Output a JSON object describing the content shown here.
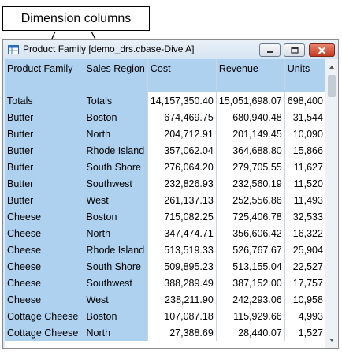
{
  "callout": {
    "text": "Dimension columns"
  },
  "window": {
    "title": "Product Family [demo_drs.cbase-Dive A]",
    "buttons": {
      "minimize": "minimize",
      "maximize": "maximize",
      "close": "close"
    }
  },
  "table": {
    "headers": [
      "Product Family",
      "Sales Region",
      "Cost",
      "Revenue",
      "Units"
    ],
    "rows": [
      [
        "Totals",
        "Totals",
        "14,157,350.40",
        "15,051,698.07",
        "698,400"
      ],
      [
        "Butter",
        "Boston",
        "674,469.75",
        "680,940.48",
        "31,544"
      ],
      [
        "Butter",
        "North",
        "204,712.91",
        "201,149.45",
        "10,090"
      ],
      [
        "Butter",
        "Rhode Island",
        "357,062.04",
        "364,688.80",
        "15,866"
      ],
      [
        "Butter",
        "South Shore",
        "276,064.20",
        "279,705.55",
        "11,627"
      ],
      [
        "Butter",
        "Southwest",
        "232,826.93",
        "232,560.19",
        "11,520"
      ],
      [
        "Butter",
        "West",
        "261,137.13",
        "252,556.86",
        "11,493"
      ],
      [
        "Cheese",
        "Boston",
        "715,082.25",
        "725,406.78",
        "32,533"
      ],
      [
        "Cheese",
        "North",
        "347,474.71",
        "356,606.42",
        "16,322"
      ],
      [
        "Cheese",
        "Rhode Island",
        "513,519.33",
        "526,767.67",
        "25,904"
      ],
      [
        "Cheese",
        "South Shore",
        "509,895.23",
        "513,155.04",
        "22,527"
      ],
      [
        "Cheese",
        "Southwest",
        "388,289.49",
        "387,152.00",
        "17,757"
      ],
      [
        "Cheese",
        "West",
        "238,211.90",
        "242,293.06",
        "10,958"
      ],
      [
        "Cottage Cheese",
        "Boston",
        "107,087.18",
        "115,929.66",
        "4,993"
      ],
      [
        "Cottage Cheese",
        "North",
        "27,388.69",
        "28,440.07",
        "1,527"
      ]
    ]
  }
}
